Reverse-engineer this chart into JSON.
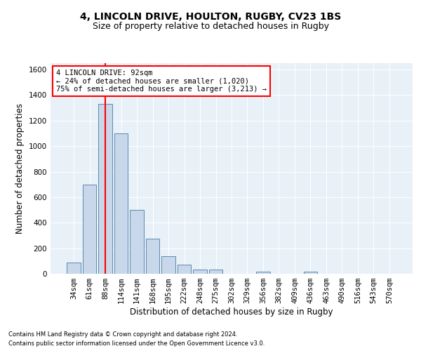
{
  "title1": "4, LINCOLN DRIVE, HOULTON, RUGBY, CV23 1BS",
  "title2": "Size of property relative to detached houses in Rugby",
  "xlabel": "Distribution of detached houses by size in Rugby",
  "ylabel": "Number of detached properties",
  "footer1": "Contains HM Land Registry data © Crown copyright and database right 2024.",
  "footer2": "Contains public sector information licensed under the Open Government Licence v3.0.",
  "categories": [
    "34sqm",
    "61sqm",
    "88sqm",
    "114sqm",
    "141sqm",
    "168sqm",
    "195sqm",
    "222sqm",
    "248sqm",
    "275sqm",
    "302sqm",
    "329sqm",
    "356sqm",
    "382sqm",
    "409sqm",
    "436sqm",
    "463sqm",
    "490sqm",
    "516sqm",
    "543sqm",
    "570sqm"
  ],
  "values": [
    90,
    700,
    1330,
    1100,
    500,
    275,
    135,
    70,
    35,
    35,
    0,
    0,
    15,
    0,
    0,
    15,
    0,
    0,
    0,
    0,
    0
  ],
  "highlight_index": 2,
  "bar_color": "#c8d8ea",
  "bar_edge_color": "#5a8ab0",
  "highlight_line_color": "red",
  "annotation_text": "4 LINCOLN DRIVE: 92sqm\n← 24% of detached houses are smaller (1,020)\n75% of semi-detached houses are larger (3,213) →",
  "annotation_box_color": "white",
  "annotation_border_color": "red",
  "ylim": [
    0,
    1650
  ],
  "yticks": [
    0,
    200,
    400,
    600,
    800,
    1000,
    1200,
    1400,
    1600
  ],
  "bg_color": "#e8f0f8",
  "grid_color": "white",
  "title1_fontsize": 10,
  "title2_fontsize": 9,
  "xlabel_fontsize": 8.5,
  "ylabel_fontsize": 8.5,
  "tick_fontsize": 7.5,
  "annotation_fontsize": 7.5,
  "footer_fontsize": 6.0
}
